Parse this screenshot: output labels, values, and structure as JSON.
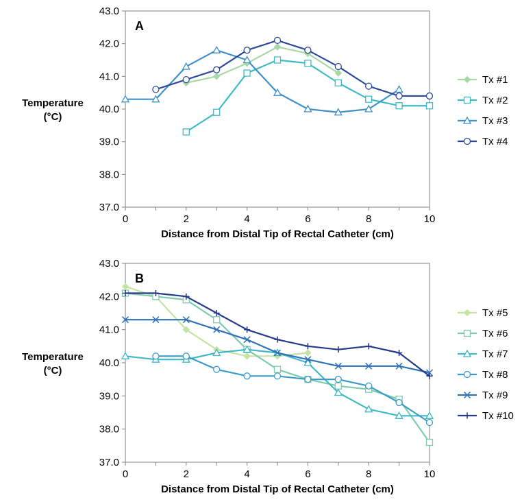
{
  "colors": {
    "tx1": "#a8d8a8",
    "tx2": "#3dbcc7",
    "tx3": "#3f8fc9",
    "tx4": "#2d4a9a",
    "tx5": "#c6e3a4",
    "tx6": "#7fcbb0",
    "tx7": "#3fb8c8",
    "tx8": "#3a9bc8",
    "tx9": "#2f72b8",
    "tx10": "#263b8a"
  },
  "chart_data": [
    {
      "type": "line",
      "panel_label": "A",
      "xlabel": "Distance from Distal Tip of Rectal Catheter (cm)",
      "ylabel": [
        "Temperature",
        "(°C)"
      ],
      "xlim": [
        0,
        10
      ],
      "ylim": [
        37.0,
        43.0
      ],
      "x_ticks": [
        "0",
        "2",
        "4",
        "6",
        "8",
        "10"
      ],
      "y_ticks": [
        "37.0",
        "38.0",
        "39.0",
        "40.0",
        "41.0",
        "42.0",
        "43.0"
      ],
      "grid": false,
      "legend_placement": "right",
      "series": [
        {
          "name": "Tx #1",
          "marker": "diamond",
          "color_key": "tx1",
          "x": [
            2,
            3,
            4,
            5,
            6,
            7
          ],
          "y": [
            40.8,
            41.0,
            41.4,
            41.9,
            41.7,
            41.1
          ]
        },
        {
          "name": "Tx #2",
          "marker": "square",
          "color_key": "tx2",
          "x": [
            2,
            3,
            4,
            5,
            6,
            7,
            8,
            9,
            10
          ],
          "y": [
            39.3,
            39.9,
            41.1,
            41.5,
            41.4,
            40.8,
            40.3,
            40.1,
            40.1
          ]
        },
        {
          "name": "Tx #3",
          "marker": "triangle",
          "color_key": "tx3",
          "x": [
            0,
            1,
            2,
            3,
            4,
            5,
            6,
            7,
            8,
            9
          ],
          "y": [
            40.3,
            40.3,
            41.3,
            41.8,
            41.5,
            40.5,
            40.0,
            39.9,
            40.0,
            40.6
          ]
        },
        {
          "name": "Tx #4",
          "marker": "circle",
          "color_key": "tx4",
          "x": [
            1,
            2,
            3,
            4,
            5,
            6,
            7,
            8,
            9,
            10
          ],
          "y": [
            40.6,
            40.9,
            41.2,
            41.8,
            42.1,
            41.8,
            41.3,
            40.7,
            40.4,
            40.4
          ]
        }
      ]
    },
    {
      "type": "line",
      "panel_label": "B",
      "xlabel": "Distance from Distal Tip of Rectal Catheter (cm)",
      "ylabel": [
        "Temperature",
        "(°C)"
      ],
      "xlim": [
        0,
        10
      ],
      "ylim": [
        37.0,
        43.0
      ],
      "x_ticks": [
        "0",
        "2",
        "4",
        "6",
        "8",
        "10"
      ],
      "y_ticks": [
        "37.0",
        "38.0",
        "39.0",
        "40.0",
        "41.0",
        "42.0",
        "43.0"
      ],
      "grid": false,
      "legend_placement": "right",
      "series": [
        {
          "name": "Tx #5",
          "marker": "diamond",
          "color_key": "tx5",
          "x": [
            0,
            1,
            2,
            3,
            4,
            5,
            6
          ],
          "y": [
            42.3,
            42.0,
            41.0,
            40.4,
            40.2,
            40.2,
            40.3
          ]
        },
        {
          "name": "Tx #6",
          "marker": "square",
          "color_key": "tx6",
          "x": [
            0,
            1,
            2,
            3,
            4,
            5,
            6,
            7,
            8,
            9,
            10
          ],
          "y": [
            42.1,
            42.0,
            41.9,
            41.3,
            40.4,
            39.8,
            39.5,
            39.3,
            39.2,
            38.9,
            37.6
          ]
        },
        {
          "name": "Tx #7",
          "marker": "triangle",
          "color_key": "tx7",
          "x": [
            0,
            1,
            2,
            3,
            4,
            5,
            6,
            7,
            8,
            9,
            10
          ],
          "y": [
            40.2,
            40.1,
            40.1,
            40.3,
            40.4,
            40.3,
            40.0,
            39.1,
            38.6,
            38.4,
            38.4
          ]
        },
        {
          "name": "Tx #8",
          "marker": "circle",
          "color_key": "tx8",
          "x": [
            1,
            2,
            3,
            4,
            5,
            6,
            7,
            8,
            9,
            10
          ],
          "y": [
            40.2,
            40.2,
            39.8,
            39.6,
            39.6,
            39.5,
            39.5,
            39.3,
            38.8,
            38.2
          ]
        },
        {
          "name": "Tx #9",
          "marker": "x",
          "color_key": "tx9",
          "x": [
            0,
            1,
            2,
            3,
            4,
            5,
            6,
            7,
            8,
            9,
            10
          ],
          "y": [
            41.3,
            41.3,
            41.3,
            41.0,
            40.7,
            40.3,
            40.1,
            39.9,
            39.9,
            39.9,
            39.7
          ]
        },
        {
          "name": "Tx #10",
          "marker": "plus",
          "color_key": "tx10",
          "x": [
            0,
            1,
            2,
            3,
            4,
            5,
            6,
            7,
            8,
            9,
            10
          ],
          "y": [
            42.1,
            42.1,
            42.0,
            41.5,
            41.0,
            40.7,
            40.5,
            40.4,
            40.5,
            40.3,
            39.6
          ]
        }
      ]
    }
  ]
}
